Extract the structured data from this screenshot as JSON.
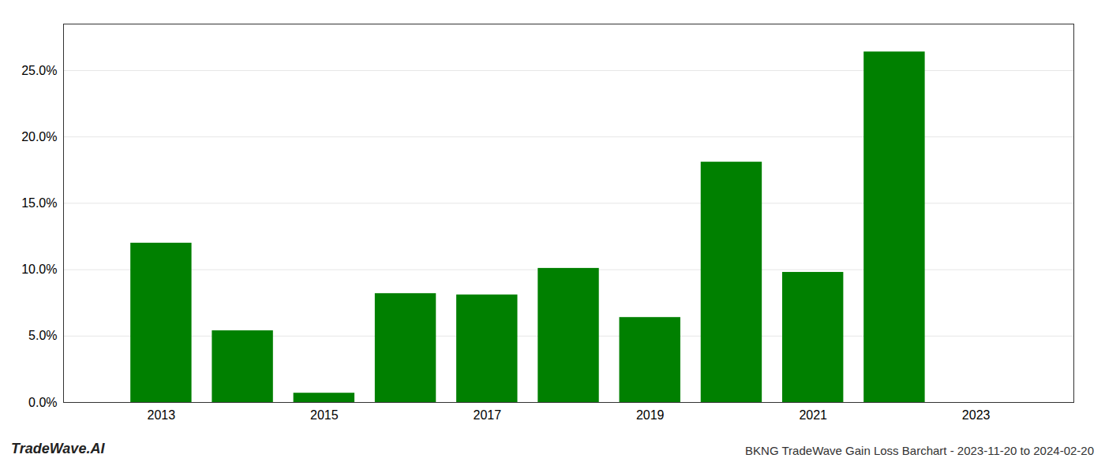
{
  "chart_data": {
    "type": "bar",
    "title": "BKNG TradeWave Gain Loss Barchart - 2023-11-20 to 2024-02-20",
    "annotations": [
      "TradeWave.AI"
    ],
    "x": [
      2013,
      2014,
      2015,
      2016,
      2017,
      2018,
      2019,
      2020,
      2021,
      2022,
      2023
    ],
    "values": [
      0.12,
      0.054,
      0.007,
      0.082,
      0.081,
      0.101,
      0.064,
      0.181,
      0.098,
      0.264,
      null
    ],
    "color": "#008000",
    "xlim": [
      2011.8,
      2024.2
    ],
    "xticks": [
      2013,
      2015,
      2017,
      2019,
      2021,
      2023
    ],
    "ylim": [
      0,
      0.285
    ],
    "yticks": [
      {
        "value": 0.0,
        "label": "0.0%"
      },
      {
        "value": 0.05,
        "label": "5.0%"
      },
      {
        "value": 0.1,
        "label": "10.0%"
      },
      {
        "value": 0.15,
        "label": "15.0%"
      },
      {
        "value": 0.2,
        "label": "20.0%"
      },
      {
        "value": 0.25,
        "label": "25.0%"
      }
    ],
    "grid": true
  }
}
